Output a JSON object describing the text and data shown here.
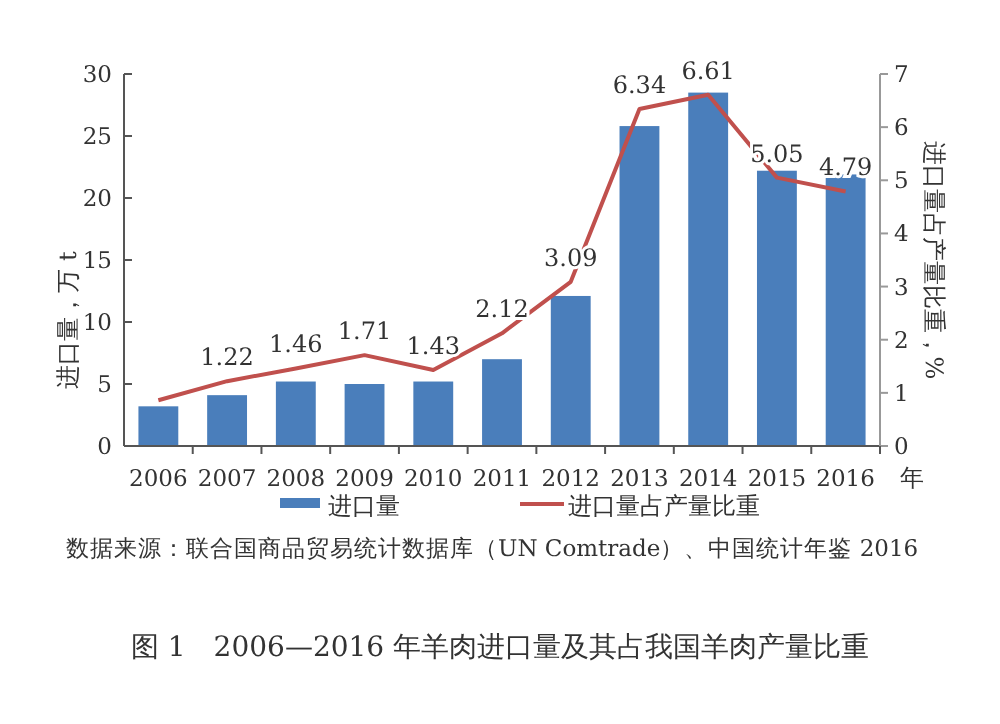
{
  "chart_data": {
    "type": "bar",
    "title": "图 1　2006—2016 年羊肉进口量及其占我国羊肉产量比重",
    "xlabel": "年",
    "ylabel": "进口量，万 t",
    "y2label": "进口量占产量比重，%",
    "annotations": [
      "数据来源：联合国商品贸易统计数据库（UN Comtrade）、中国统计年鉴 2016"
    ],
    "categories": [
      "2006",
      "2007",
      "2008",
      "2009",
      "2010",
      "2011",
      "2012",
      "2013",
      "2014",
      "2015",
      "2016"
    ],
    "series": [
      {
        "name": "进口量",
        "color": "#4a7ebb",
        "values": [
          3.2,
          4.1,
          5.2,
          5.0,
          5.2,
          7.0,
          12.1,
          25.8,
          28.5,
          22.2,
          21.9
        ]
      },
      {
        "name": "进口量占产量比重",
        "type": "line",
        "axis": "y2",
        "color": "#c0504d",
        "values": [
          0.86,
          1.22,
          1.46,
          1.71,
          1.43,
          2.12,
          3.09,
          6.34,
          6.61,
          5.05,
          4.79
        ],
        "value_labels": [
          null,
          "1.22",
          "1.46",
          "1.71",
          "1.43",
          "2.12",
          "3.09",
          "6.34",
          "6.61",
          "5.05",
          "4.79"
        ]
      }
    ],
    "ylim": [
      0,
      30
    ],
    "yticks": [
      0,
      5,
      10,
      15,
      20,
      25,
      30
    ],
    "y2lim": [
      0,
      7
    ],
    "y2ticks": [
      0,
      1,
      2,
      3,
      4,
      5,
      6,
      7
    ],
    "legend": "bottom",
    "grid": false,
    "marker": "none"
  }
}
